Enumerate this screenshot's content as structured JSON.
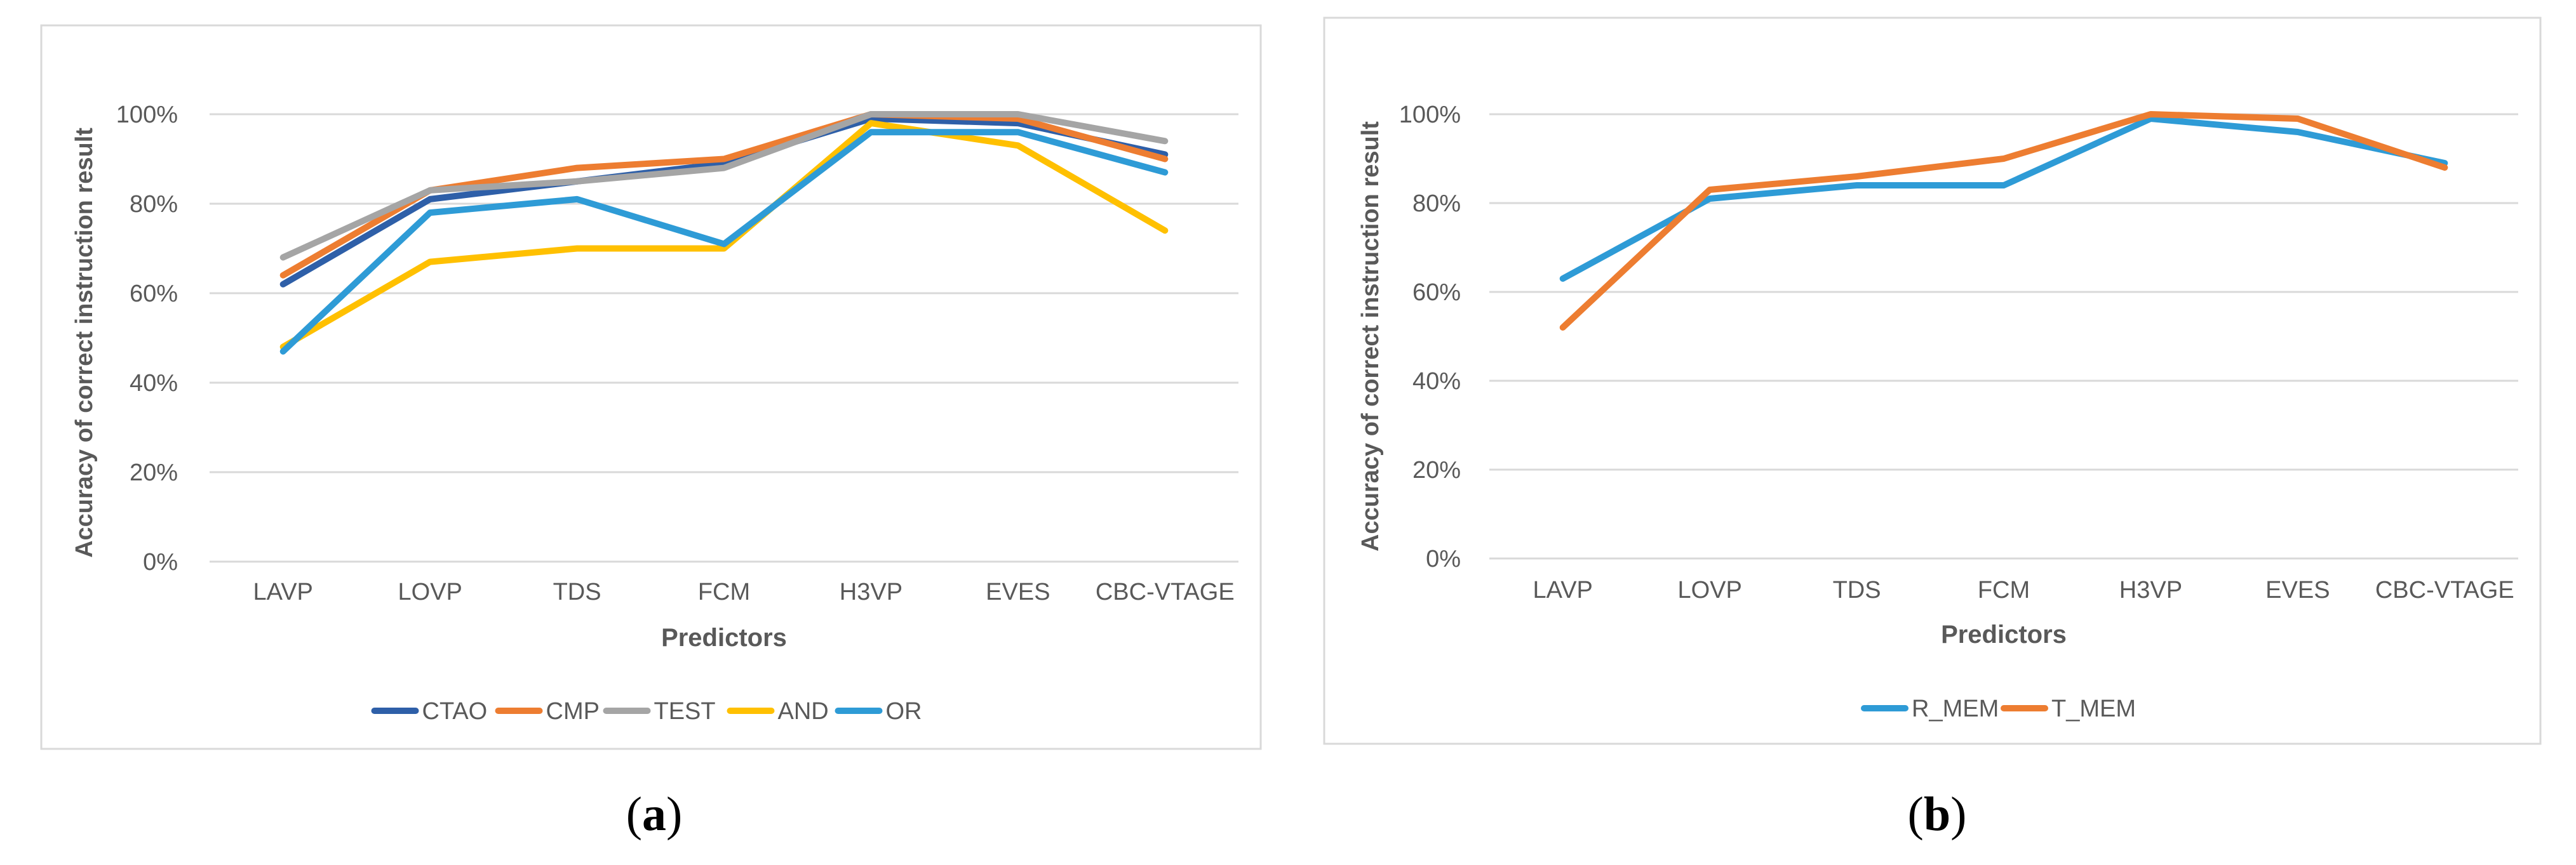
{
  "captions": {
    "a": {
      "open": "(",
      "letter": "a",
      "close": ")"
    },
    "b": {
      "open": "(",
      "letter": "b",
      "close": ")"
    }
  },
  "chart_data": [
    {
      "type": "line",
      "title": "",
      "xlabel": "Predictors",
      "ylabel": "Accuracy of correct instruction result",
      "ylim": [
        0,
        100
      ],
      "yticks": [
        "0%",
        "20%",
        "40%",
        "60%",
        "80%",
        "100%"
      ],
      "categories": [
        "LAVP",
        "LOVP",
        "TDS",
        "FCM",
        "H3VP",
        "EVES",
        "CBC-VTAGE"
      ],
      "legend_position": "bottom",
      "series": [
        {
          "name": "CTAO",
          "color": "#2E5FA8",
          "values": [
            62,
            81,
            85,
            89,
            99,
            98,
            91
          ]
        },
        {
          "name": "CMP",
          "color": "#ED7D31",
          "values": [
            64,
            83,
            88,
            90,
            100,
            99,
            90
          ]
        },
        {
          "name": "TEST",
          "color": "#A5A5A5",
          "values": [
            68,
            83,
            85,
            88,
            100,
            100,
            94
          ]
        },
        {
          "name": "AND",
          "color": "#FFC000",
          "values": [
            48,
            67,
            70,
            70,
            98,
            93,
            74
          ]
        },
        {
          "name": "OR",
          "color": "#2E9BD6",
          "values": [
            47,
            78,
            81,
            71,
            96,
            96,
            87
          ]
        }
      ]
    },
    {
      "type": "line",
      "title": "",
      "xlabel": "Predictors",
      "ylabel": "Accuracy of correct instruction result",
      "ylim": [
        0,
        100
      ],
      "yticks": [
        "0%",
        "20%",
        "40%",
        "60%",
        "80%",
        "100%"
      ],
      "categories": [
        "LAVP",
        "LOVP",
        "TDS",
        "FCM",
        "H3VP",
        "EVES",
        "CBC-VTAGE"
      ],
      "legend_position": "bottom",
      "series": [
        {
          "name": "R_MEM",
          "color": "#2E9BD6",
          "values": [
            63,
            81,
            84,
            84,
            99,
            96,
            89
          ]
        },
        {
          "name": "T_MEM",
          "color": "#ED7D31",
          "values": [
            52,
            83,
            86,
            90,
            100,
            99,
            88
          ]
        }
      ]
    }
  ]
}
